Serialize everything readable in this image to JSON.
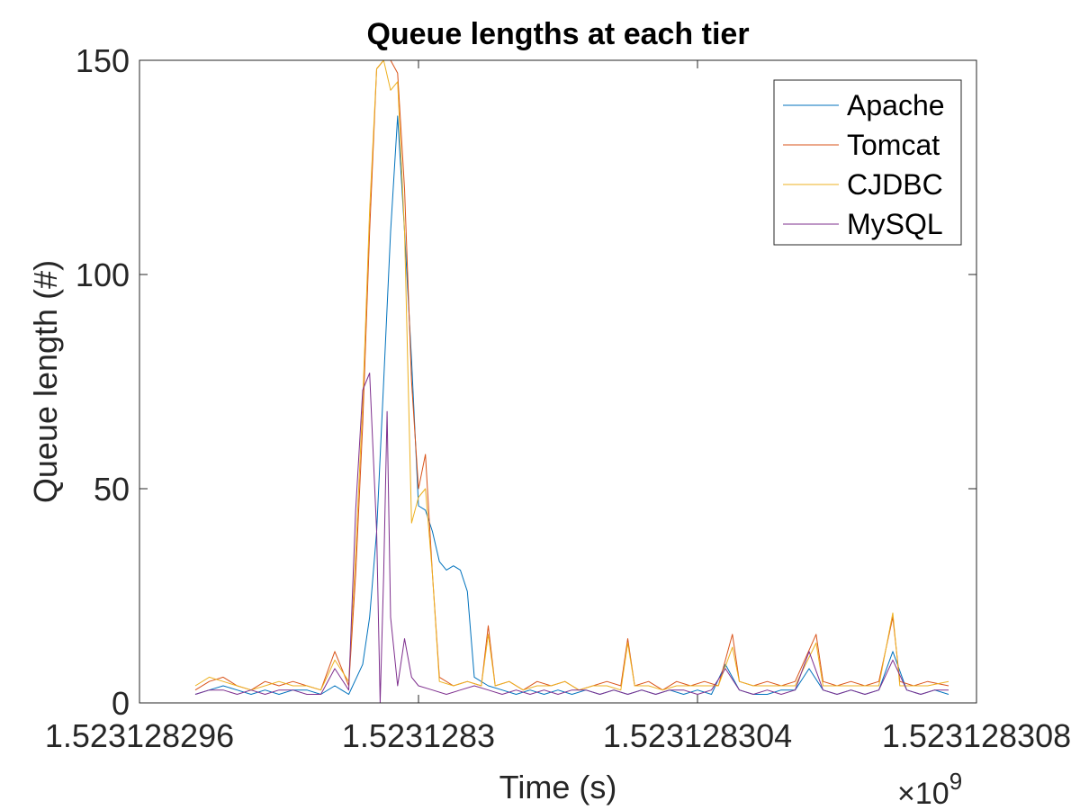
{
  "chart_data": {
    "type": "line",
    "title": "Queue lengths at each tier",
    "xlabel": "Time (s)",
    "ylabel": "Queue length (#)",
    "x_exponent_label": "×10",
    "x_exponent_power": "9",
    "xlim": [
      1523128296,
      1523128308
    ],
    "ylim": [
      0,
      150
    ],
    "x_ticks": [
      1523128296,
      1523128300,
      1523128304,
      1523128308
    ],
    "x_tick_labels": [
      "1.523128296",
      "1.5231283",
      "1.523128304",
      "1.523128308"
    ],
    "y_ticks": [
      0,
      50,
      100,
      150
    ],
    "y_tick_labels": [
      "0",
      "50",
      "100",
      "150"
    ],
    "grid": false,
    "legend_position": "top-right",
    "series": [
      {
        "name": "Apache",
        "color": "#0072bd",
        "points": [
          [
            1523128296.8,
            2
          ],
          [
            1523128297.0,
            3
          ],
          [
            1523128297.2,
            4
          ],
          [
            1523128297.4,
            3
          ],
          [
            1523128297.6,
            2
          ],
          [
            1523128297.8,
            3
          ],
          [
            1523128298.0,
            2
          ],
          [
            1523128298.2,
            3
          ],
          [
            1523128298.4,
            3
          ],
          [
            1523128298.6,
            2
          ],
          [
            1523128298.8,
            4
          ],
          [
            1523128299.0,
            2
          ],
          [
            1523128299.2,
            9
          ],
          [
            1523128299.3,
            20
          ],
          [
            1523128299.4,
            40
          ],
          [
            1523128299.5,
            75
          ],
          [
            1523128299.6,
            110
          ],
          [
            1523128299.7,
            137
          ],
          [
            1523128299.8,
            110
          ],
          [
            1523128299.9,
            80
          ],
          [
            1523128300.0,
            46
          ],
          [
            1523128300.1,
            45
          ],
          [
            1523128300.2,
            40
          ],
          [
            1523128300.3,
            33
          ],
          [
            1523128300.4,
            31
          ],
          [
            1523128300.5,
            32
          ],
          [
            1523128300.6,
            31
          ],
          [
            1523128300.7,
            26
          ],
          [
            1523128300.8,
            6
          ],
          [
            1523128301.0,
            4
          ],
          [
            1523128301.2,
            3
          ],
          [
            1523128301.4,
            2
          ],
          [
            1523128301.6,
            3
          ],
          [
            1523128301.8,
            2
          ],
          [
            1523128302.0,
            3
          ],
          [
            1523128302.2,
            2
          ],
          [
            1523128302.4,
            3
          ],
          [
            1523128302.6,
            2
          ],
          [
            1523128302.8,
            3
          ],
          [
            1523128303.0,
            2
          ],
          [
            1523128303.2,
            3
          ],
          [
            1523128303.4,
            2
          ],
          [
            1523128303.6,
            3
          ],
          [
            1523128303.8,
            2
          ],
          [
            1523128304.0,
            3
          ],
          [
            1523128304.2,
            2
          ],
          [
            1523128304.4,
            9
          ],
          [
            1523128304.6,
            3
          ],
          [
            1523128304.8,
            2
          ],
          [
            1523128305.0,
            2
          ],
          [
            1523128305.2,
            3
          ],
          [
            1523128305.4,
            3
          ],
          [
            1523128305.6,
            8
          ],
          [
            1523128305.8,
            3
          ],
          [
            1523128306.0,
            2
          ],
          [
            1523128306.2,
            3
          ],
          [
            1523128306.4,
            2
          ],
          [
            1523128306.6,
            3
          ],
          [
            1523128306.8,
            12
          ],
          [
            1523128307.0,
            3
          ],
          [
            1523128307.2,
            2
          ],
          [
            1523128307.4,
            3
          ],
          [
            1523128307.6,
            2
          ]
        ]
      },
      {
        "name": "Tomcat",
        "color": "#d95319",
        "points": [
          [
            1523128296.8,
            3
          ],
          [
            1523128297.0,
            5
          ],
          [
            1523128297.2,
            6
          ],
          [
            1523128297.4,
            4
          ],
          [
            1523128297.6,
            3
          ],
          [
            1523128297.8,
            5
          ],
          [
            1523128298.0,
            4
          ],
          [
            1523128298.2,
            5
          ],
          [
            1523128298.4,
            4
          ],
          [
            1523128298.6,
            3
          ],
          [
            1523128298.8,
            12
          ],
          [
            1523128299.0,
            4
          ],
          [
            1523128299.1,
            30
          ],
          [
            1523128299.2,
            65
          ],
          [
            1523128299.3,
            110
          ],
          [
            1523128299.4,
            148
          ],
          [
            1523128299.5,
            150
          ],
          [
            1523128299.6,
            150
          ],
          [
            1523128299.7,
            147
          ],
          [
            1523128299.8,
            120
          ],
          [
            1523128299.9,
            75
          ],
          [
            1523128300.0,
            50
          ],
          [
            1523128300.1,
            58
          ],
          [
            1523128300.2,
            30
          ],
          [
            1523128300.3,
            6
          ],
          [
            1523128300.5,
            4
          ],
          [
            1523128300.7,
            5
          ],
          [
            1523128300.9,
            4
          ],
          [
            1523128301.0,
            18
          ],
          [
            1523128301.1,
            4
          ],
          [
            1523128301.3,
            5
          ],
          [
            1523128301.5,
            3
          ],
          [
            1523128301.7,
            5
          ],
          [
            1523128301.9,
            4
          ],
          [
            1523128302.1,
            5
          ],
          [
            1523128302.3,
            3
          ],
          [
            1523128302.5,
            4
          ],
          [
            1523128302.7,
            5
          ],
          [
            1523128302.9,
            4
          ],
          [
            1523128303.0,
            15
          ],
          [
            1523128303.1,
            4
          ],
          [
            1523128303.3,
            5
          ],
          [
            1523128303.5,
            3
          ],
          [
            1523128303.7,
            5
          ],
          [
            1523128303.9,
            4
          ],
          [
            1523128304.1,
            5
          ],
          [
            1523128304.3,
            4
          ],
          [
            1523128304.5,
            16
          ],
          [
            1523128304.6,
            5
          ],
          [
            1523128304.8,
            4
          ],
          [
            1523128305.0,
            5
          ],
          [
            1523128305.2,
            4
          ],
          [
            1523128305.4,
            5
          ],
          [
            1523128305.7,
            16
          ],
          [
            1523128305.8,
            5
          ],
          [
            1523128306.0,
            4
          ],
          [
            1523128306.2,
            5
          ],
          [
            1523128306.4,
            4
          ],
          [
            1523128306.6,
            5
          ],
          [
            1523128306.8,
            20
          ],
          [
            1523128306.9,
            5
          ],
          [
            1523128307.1,
            4
          ],
          [
            1523128307.3,
            5
          ],
          [
            1523128307.6,
            4
          ]
        ]
      },
      {
        "name": "CJDBC",
        "color": "#edb120",
        "points": [
          [
            1523128296.8,
            4
          ],
          [
            1523128297.0,
            6
          ],
          [
            1523128297.2,
            5
          ],
          [
            1523128297.4,
            4
          ],
          [
            1523128297.6,
            3
          ],
          [
            1523128297.8,
            4
          ],
          [
            1523128298.0,
            5
          ],
          [
            1523128298.2,
            4
          ],
          [
            1523128298.4,
            4
          ],
          [
            1523128298.6,
            3
          ],
          [
            1523128298.8,
            10
          ],
          [
            1523128299.0,
            5
          ],
          [
            1523128299.1,
            35
          ],
          [
            1523128299.2,
            70
          ],
          [
            1523128299.3,
            115
          ],
          [
            1523128299.4,
            148
          ],
          [
            1523128299.5,
            150
          ],
          [
            1523128299.6,
            143
          ],
          [
            1523128299.7,
            145
          ],
          [
            1523128299.8,
            110
          ],
          [
            1523128299.9,
            42
          ],
          [
            1523128300.0,
            48
          ],
          [
            1523128300.1,
            50
          ],
          [
            1523128300.2,
            30
          ],
          [
            1523128300.3,
            5
          ],
          [
            1523128300.5,
            4
          ],
          [
            1523128300.7,
            5
          ],
          [
            1523128300.9,
            4
          ],
          [
            1523128301.0,
            16
          ],
          [
            1523128301.1,
            4
          ],
          [
            1523128301.3,
            5
          ],
          [
            1523128301.5,
            3
          ],
          [
            1523128301.7,
            4
          ],
          [
            1523128301.9,
            4
          ],
          [
            1523128302.1,
            5
          ],
          [
            1523128302.3,
            3
          ],
          [
            1523128302.5,
            4
          ],
          [
            1523128302.7,
            4
          ],
          [
            1523128302.9,
            3
          ],
          [
            1523128303.0,
            14
          ],
          [
            1523128303.1,
            4
          ],
          [
            1523128303.3,
            4
          ],
          [
            1523128303.5,
            3
          ],
          [
            1523128303.7,
            4
          ],
          [
            1523128303.9,
            4
          ],
          [
            1523128304.1,
            4
          ],
          [
            1523128304.3,
            4
          ],
          [
            1523128304.5,
            13
          ],
          [
            1523128304.6,
            5
          ],
          [
            1523128304.8,
            4
          ],
          [
            1523128305.0,
            4
          ],
          [
            1523128305.2,
            4
          ],
          [
            1523128305.4,
            4
          ],
          [
            1523128305.7,
            14
          ],
          [
            1523128305.8,
            4
          ],
          [
            1523128306.0,
            4
          ],
          [
            1523128306.2,
            4
          ],
          [
            1523128306.4,
            4
          ],
          [
            1523128306.6,
            4
          ],
          [
            1523128306.8,
            21
          ],
          [
            1523128306.9,
            4
          ],
          [
            1523128307.1,
            4
          ],
          [
            1523128307.3,
            4
          ],
          [
            1523128307.6,
            5
          ]
        ]
      },
      {
        "name": "MySQL",
        "color": "#7e2f8e",
        "points": [
          [
            1523128296.8,
            2
          ],
          [
            1523128297.0,
            3
          ],
          [
            1523128297.2,
            3
          ],
          [
            1523128297.4,
            2
          ],
          [
            1523128297.6,
            3
          ],
          [
            1523128297.8,
            2
          ],
          [
            1523128298.0,
            3
          ],
          [
            1523128298.2,
            3
          ],
          [
            1523128298.4,
            2
          ],
          [
            1523128298.6,
            2
          ],
          [
            1523128298.8,
            8
          ],
          [
            1523128299.0,
            3
          ],
          [
            1523128299.1,
            45
          ],
          [
            1523128299.2,
            73
          ],
          [
            1523128299.3,
            77
          ],
          [
            1523128299.4,
            40
          ],
          [
            1523128299.45,
            0
          ],
          [
            1523128299.5,
            30
          ],
          [
            1523128299.55,
            68
          ],
          [
            1523128299.6,
            20
          ],
          [
            1523128299.7,
            4
          ],
          [
            1523128299.8,
            15
          ],
          [
            1523128299.9,
            6
          ],
          [
            1523128300.0,
            4
          ],
          [
            1523128300.2,
            3
          ],
          [
            1523128300.4,
            2
          ],
          [
            1523128300.6,
            3
          ],
          [
            1523128300.8,
            4
          ],
          [
            1523128301.0,
            3
          ],
          [
            1523128301.2,
            2
          ],
          [
            1523128301.4,
            3
          ],
          [
            1523128301.6,
            2
          ],
          [
            1523128301.8,
            3
          ],
          [
            1523128302.0,
            2
          ],
          [
            1523128302.2,
            3
          ],
          [
            1523128302.4,
            3
          ],
          [
            1523128302.6,
            2
          ],
          [
            1523128302.8,
            3
          ],
          [
            1523128303.0,
            2
          ],
          [
            1523128303.2,
            3
          ],
          [
            1523128303.4,
            2
          ],
          [
            1523128303.6,
            3
          ],
          [
            1523128303.8,
            3
          ],
          [
            1523128304.0,
            2
          ],
          [
            1523128304.2,
            3
          ],
          [
            1523128304.4,
            8
          ],
          [
            1523128304.6,
            3
          ],
          [
            1523128304.8,
            2
          ],
          [
            1523128305.0,
            3
          ],
          [
            1523128305.2,
            2
          ],
          [
            1523128305.4,
            3
          ],
          [
            1523128305.6,
            12
          ],
          [
            1523128305.8,
            3
          ],
          [
            1523128306.0,
            2
          ],
          [
            1523128306.2,
            3
          ],
          [
            1523128306.4,
            2
          ],
          [
            1523128306.6,
            3
          ],
          [
            1523128306.8,
            10
          ],
          [
            1523128307.0,
            3
          ],
          [
            1523128307.2,
            2
          ],
          [
            1523128307.4,
            3
          ],
          [
            1523128307.6,
            3
          ]
        ]
      }
    ]
  }
}
